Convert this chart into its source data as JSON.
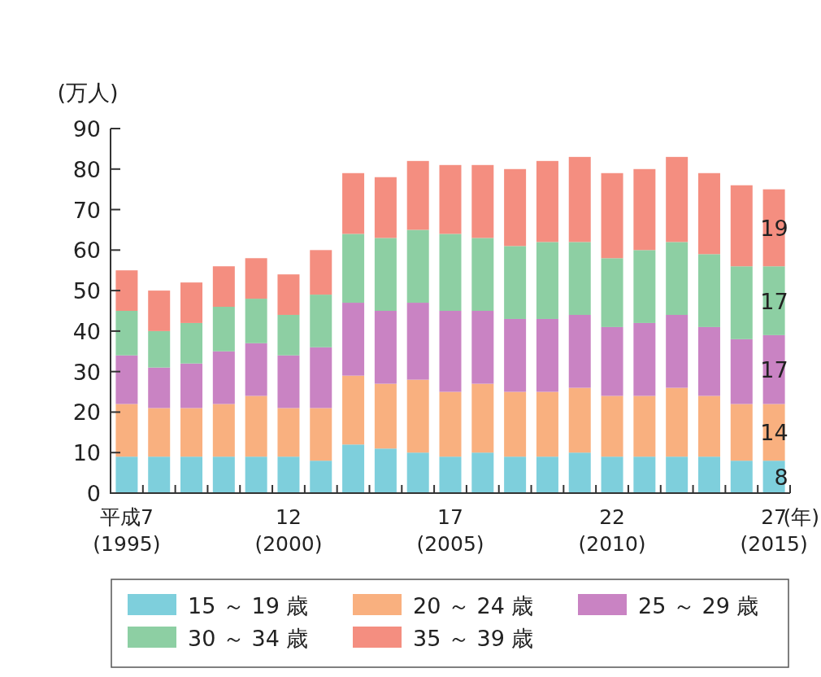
{
  "chart_data": {
    "type": "bar",
    "stacked": true,
    "ylabel": "(万人)",
    "xlabel": "(年)",
    "categories": [
      "平成7\n(1995)",
      null,
      null,
      null,
      null,
      "12\n(2000)",
      null,
      null,
      null,
      null,
      "17\n(2005)",
      null,
      null,
      null,
      null,
      "22\n(2010)",
      null,
      null,
      null,
      null,
      "27\n(2015)"
    ],
    "ylim": [
      0,
      90
    ],
    "yticks": [
      0,
      10,
      20,
      30,
      40,
      50,
      60,
      70,
      80,
      90
    ],
    "legend": "bottom",
    "grid": false,
    "series": [
      {
        "name": "15 ～ 19 歳",
        "color": "#7ecfdc",
        "values": [
          9,
          9,
          9,
          9,
          9,
          9,
          8,
          12,
          11,
          10,
          9,
          10,
          9,
          9,
          10,
          9,
          9,
          9,
          9,
          8,
          8
        ],
        "value_labels": [
          null,
          null,
          null,
          null,
          null,
          null,
          null,
          null,
          null,
          null,
          null,
          null,
          null,
          null,
          null,
          null,
          null,
          null,
          null,
          null,
          "8"
        ]
      },
      {
        "name": "20 ～ 24 歳",
        "color": "#f9b07f",
        "values": [
          13,
          12,
          12,
          13,
          15,
          12,
          13,
          17,
          16,
          18,
          16,
          17,
          16,
          16,
          16,
          15,
          15,
          17,
          15,
          14,
          14
        ],
        "value_labels": [
          null,
          null,
          null,
          null,
          null,
          null,
          null,
          null,
          null,
          null,
          null,
          null,
          null,
          null,
          null,
          null,
          null,
          null,
          null,
          null,
          "14"
        ]
      },
      {
        "name": "25 ～ 29 歳",
        "color": "#c983c3",
        "values": [
          12,
          10,
          11,
          13,
          13,
          13,
          15,
          18,
          18,
          19,
          20,
          18,
          18,
          18,
          18,
          17,
          18,
          18,
          17,
          16,
          17
        ],
        "value_labels": [
          null,
          null,
          null,
          null,
          null,
          null,
          null,
          null,
          null,
          null,
          null,
          null,
          null,
          null,
          null,
          null,
          null,
          null,
          null,
          null,
          "17"
        ]
      },
      {
        "name": "30 ～ 34 歳",
        "color": "#8dcfa3",
        "values": [
          11,
          9,
          10,
          11,
          11,
          10,
          13,
          17,
          18,
          18,
          19,
          18,
          18,
          19,
          18,
          17,
          18,
          18,
          18,
          18,
          17
        ],
        "value_labels": [
          null,
          null,
          null,
          null,
          null,
          null,
          null,
          null,
          null,
          null,
          null,
          null,
          null,
          null,
          null,
          null,
          null,
          null,
          null,
          null,
          "17"
        ]
      },
      {
        "name": "35 ～ 39 歳",
        "color": "#f48e80",
        "values": [
          10,
          10,
          10,
          10,
          10,
          10,
          11,
          15,
          15,
          17,
          17,
          18,
          19,
          20,
          21,
          21,
          20,
          21,
          20,
          20,
          19
        ],
        "value_labels": [
          null,
          null,
          null,
          null,
          null,
          null,
          null,
          null,
          null,
          null,
          null,
          null,
          null,
          null,
          null,
          null,
          null,
          null,
          null,
          null,
          "19"
        ]
      }
    ]
  }
}
